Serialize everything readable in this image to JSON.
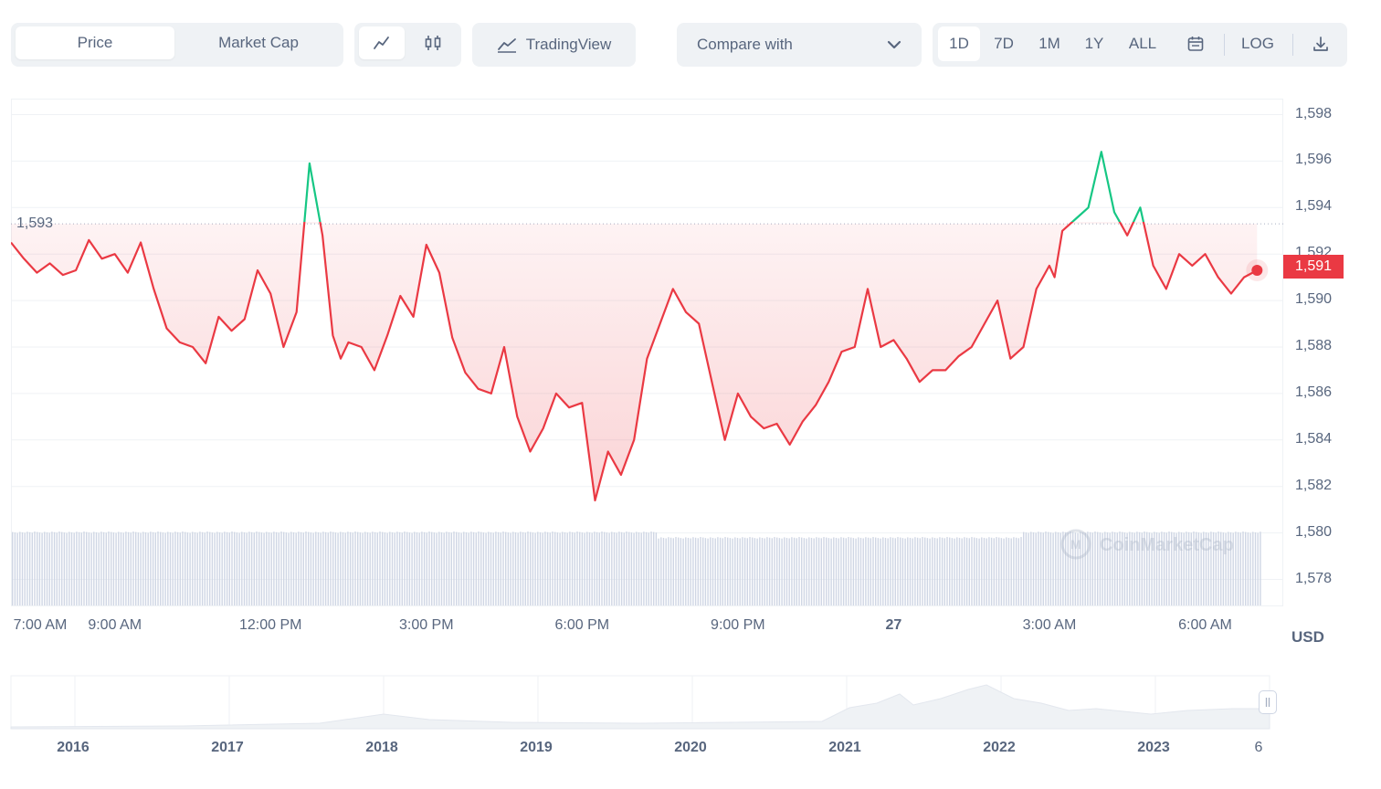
{
  "toolbar": {
    "price_tab": "Price",
    "market_cap_tab": "Market Cap",
    "line_icon": "line-chart-icon",
    "candle_icon": "candlestick-icon",
    "tradingview_icon": "tradingview-icon",
    "tradingview_label": "TradingView",
    "compare_label": "Compare with",
    "ranges": [
      "1D",
      "7D",
      "1M",
      "1Y",
      "ALL"
    ],
    "active_range": "1D",
    "calendar_icon": "calendar-icon",
    "log_label": "LOG",
    "download_icon": "download-icon"
  },
  "colors": {
    "down": "#ea3943",
    "up": "#16c784",
    "volume": "#cfd6e4"
  },
  "current_price": "1,591",
  "reference_price_label": "1,593",
  "currency": "USD",
  "watermark": "CoinMarketCap",
  "navigator": {
    "years": [
      "2016",
      "2017",
      "2018",
      "2019",
      "2020",
      "2021",
      "2022",
      "2023"
    ],
    "end_label": "6",
    "handle_icon": "drag-handle-icon"
  },
  "chart_data": {
    "type": "line",
    "reference_value": 1593.3,
    "ylim": [
      1577,
      1598.6
    ],
    "yticks": [
      "1,598",
      "1,596",
      "1,594",
      "1,592",
      "1,590",
      "1,588",
      "1,586",
      "1,584",
      "1,582",
      "1,580",
      "1,578"
    ],
    "ytick_values": [
      1598,
      1596,
      1594,
      1592,
      1590,
      1588,
      1586,
      1584,
      1582,
      1580,
      1578
    ],
    "xtick_labels": [
      "7:00 AM",
      "9:00 AM",
      "12:00 PM",
      "3:00 PM",
      "6:00 PM",
      "9:00 PM",
      "27",
      "3:00 AM",
      "6:00 AM"
    ],
    "xtick_hours": [
      7,
      9,
      12,
      15,
      18,
      21,
      24,
      27,
      30
    ],
    "x_range_hours": [
      7,
      31.1
    ],
    "series": [
      {
        "x": [
          7.0,
          7.25,
          7.5,
          7.75,
          8.0,
          8.25,
          8.5,
          8.75,
          9.0,
          9.25,
          9.5,
          9.75,
          10.0,
          10.25,
          10.5,
          10.75,
          11.0,
          11.25,
          11.5,
          11.75,
          12.0,
          12.25,
          12.5,
          12.75,
          13.0,
          13.2,
          13.35,
          13.5,
          13.75,
          14.0,
          14.25,
          14.5,
          14.75,
          15.0,
          15.25,
          15.5,
          15.75,
          16.0,
          16.25,
          16.5,
          16.75,
          17.0,
          17.25,
          17.5,
          17.75,
          18.0,
          18.25,
          18.5,
          18.75,
          19.0,
          19.25,
          19.5,
          19.75,
          20.0,
          20.25,
          20.5,
          20.75,
          21.0,
          21.25,
          21.5,
          21.75,
          22.0,
          22.25,
          22.5,
          22.75,
          23.0,
          23.25,
          23.5,
          23.75,
          24.0,
          24.25,
          24.5,
          24.75,
          25.0,
          25.25,
          25.5,
          25.75,
          26.0,
          26.25,
          26.5,
          26.75,
          27.0,
          27.1,
          27.25,
          27.5,
          27.75,
          28.0,
          28.25,
          28.5,
          28.75,
          29.0,
          29.25,
          29.5,
          29.75,
          30.0,
          30.25,
          30.5,
          30.75,
          31.0
        ],
        "y": [
          1592.5,
          1591.8,
          1591.2,
          1591.6,
          1591.1,
          1591.3,
          1592.6,
          1591.8,
          1592.0,
          1591.2,
          1592.5,
          1590.5,
          1588.8,
          1588.2,
          1588.0,
          1587.3,
          1589.3,
          1588.7,
          1589.2,
          1591.3,
          1590.3,
          1588.0,
          1589.5,
          1595.9,
          1592.8,
          1588.5,
          1587.5,
          1588.2,
          1588.0,
          1587.0,
          1588.5,
          1590.2,
          1589.3,
          1592.4,
          1591.2,
          1588.4,
          1586.9,
          1586.2,
          1586.0,
          1588.0,
          1585.0,
          1583.5,
          1584.5,
          1586.0,
          1585.4,
          1585.6,
          1581.4,
          1583.5,
          1582.5,
          1584.0,
          1587.5,
          1589.0,
          1590.5,
          1589.5,
          1589.0,
          1586.5,
          1584.0,
          1586.0,
          1585.0,
          1584.5,
          1584.7,
          1583.8,
          1584.8,
          1585.5,
          1586.5,
          1587.8,
          1588.0,
          1590.5,
          1588.0,
          1588.3,
          1587.5,
          1586.5,
          1587.0,
          1587.0,
          1587.6,
          1588.0,
          1589.0,
          1590.0,
          1587.5,
          1588.0,
          1590.5,
          1591.5,
          1591.0,
          1593.0,
          1593.5,
          1594.0,
          1596.4,
          1593.8,
          1592.8,
          1594.0,
          1591.5,
          1590.5,
          1592.0,
          1591.5,
          1592.0,
          1591.0,
          1590.3,
          1591.0,
          1591.3
        ]
      }
    ],
    "grid": true
  }
}
